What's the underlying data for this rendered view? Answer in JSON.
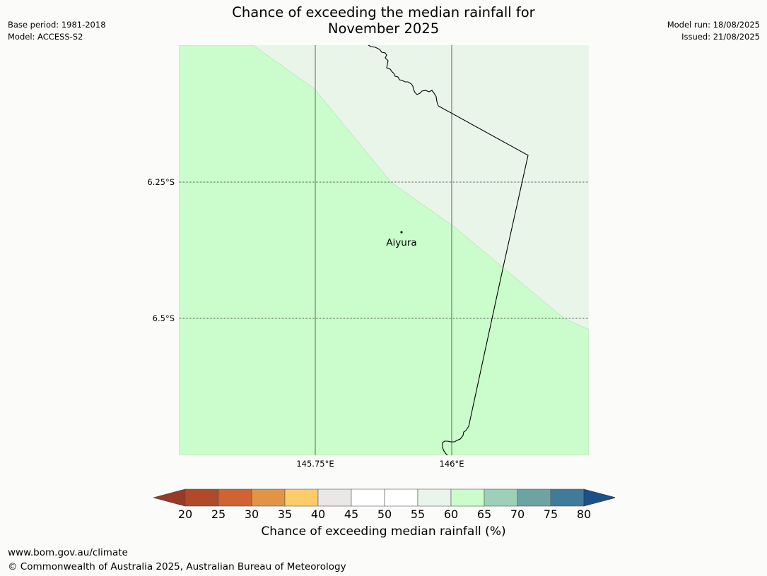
{
  "title_line1": "Chance of exceeding the median rainfall for",
  "title_line2": "November 2025",
  "meta_left": {
    "base_period": "Base period: 1981-2018",
    "model": "Model: ACCESS-S2"
  },
  "meta_right": {
    "model_run": "Model run: 18/08/2025",
    "issued": "Issued: 21/08/2025"
  },
  "map": {
    "latitude_labels": [
      "6.25°S",
      "6.5°S"
    ],
    "longitude_labels": [
      "145.75°E",
      "146°E"
    ],
    "place": "Aiyura",
    "colors": {
      "zone_55_60": "#eaf5e9",
      "zone_60_65": "#cafdcb",
      "coast": "#000000"
    }
  },
  "colorbar": {
    "ticks": [
      "20",
      "25",
      "30",
      "35",
      "40",
      "45",
      "50",
      "55",
      "60",
      "65",
      "70",
      "75",
      "80"
    ],
    "colors": [
      "#983a28",
      "#b14a28",
      "#d06332",
      "#e29446",
      "#fecc68",
      "#eae8e6",
      "#ffffff",
      "#ffffff",
      "#eaf5e9",
      "#cafdcb",
      "#9ed0b9",
      "#6da4a3",
      "#417b9b",
      "#1b5188"
    ],
    "label": "Chance of exceeding median rainfall (%)"
  },
  "footer": {
    "url": "www.bom.gov.au/climate",
    "copyright": "© Commonwealth of Australia 2025, Australian Bureau of Meteorology"
  }
}
